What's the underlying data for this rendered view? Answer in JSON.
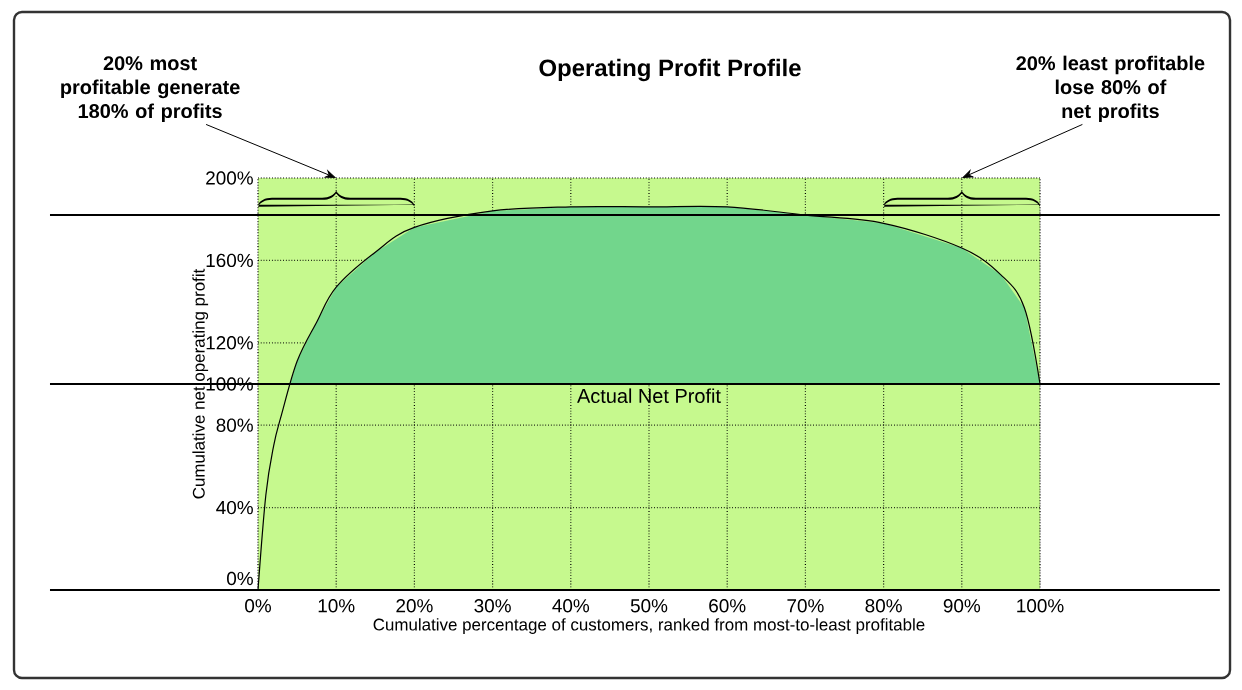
{
  "chart_data": {
    "type": "area",
    "title": "Operating Profit Profile",
    "xlabel": "Cumulative percentage of customers, ranked from most-to-least profitable",
    "ylabel": "Cumulative net operating profit",
    "series": [
      {
        "color": "#72d68c",
        "x": [
          0,
          1,
          2,
          3,
          5,
          7.5,
          10,
          15,
          20,
          30,
          40,
          50,
          60,
          70,
          80,
          90,
          95,
          98,
          100
        ],
        "values": [
          0,
          46,
          70,
          85,
          111,
          130,
          147,
          164,
          176,
          184,
          186,
          186,
          186,
          182,
          178,
          166,
          153,
          137,
          100
        ]
      }
    ],
    "xlim": [
      0,
      100
    ],
    "ylim": [
      0,
      200
    ],
    "xticks": [
      {
        "value": 0,
        "label": "0%"
      },
      {
        "value": 10,
        "label": "10%"
      },
      {
        "value": 20,
        "label": "20%"
      },
      {
        "value": 30,
        "label": "30%"
      },
      {
        "value": 40,
        "label": "40%"
      },
      {
        "value": 50,
        "label": "50%"
      },
      {
        "value": 60,
        "label": "60%"
      },
      {
        "value": 70,
        "label": "70%"
      },
      {
        "value": 80,
        "label": "80%"
      },
      {
        "value": 90,
        "label": "90%"
      },
      {
        "value": 100,
        "label": "100%"
      }
    ],
    "yticks": [
      {
        "value": 0,
        "label": "0%"
      },
      {
        "value": 40,
        "label": "40%"
      },
      {
        "value": 80,
        "label": "80%"
      },
      {
        "value": 100,
        "label": "100%"
      },
      {
        "value": 120,
        "label": "120%"
      },
      {
        "value": 160,
        "label": "160%"
      },
      {
        "value": 200,
        "label": "200%"
      }
    ],
    "ref_lines": [
      {
        "axis": "y",
        "value": 100,
        "label": "Actual Net Profit"
      },
      {
        "axis": "y",
        "value": 182
      }
    ],
    "annotations": [
      "20% most profitable generate 180% of profits",
      "20% least profitable lose 80% of net profits"
    ],
    "grid": true,
    "marker": "none"
  }
}
